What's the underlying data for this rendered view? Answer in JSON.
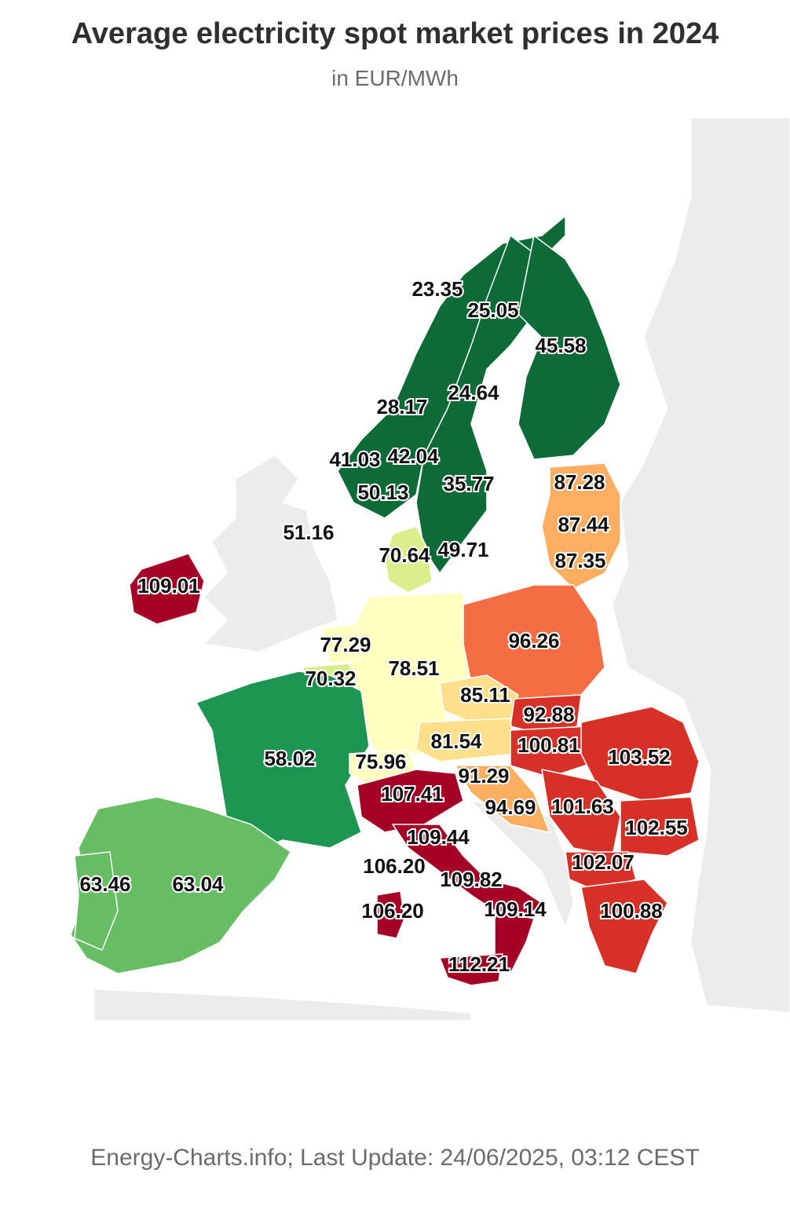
{
  "header": {
    "title": "Average electricity spot market prices in 2024",
    "subtitle": "in EUR/MWh"
  },
  "footer": {
    "source": "Energy-Charts.info; Last Update: 24/06/2025, 03:12 CEST"
  },
  "colors": {
    "dark_green": "#0d6b37",
    "green": "#1b9550",
    "light_green": "#66bd63",
    "yellow_green": "#d9ef8b",
    "pale_yellow": "#ffffbf",
    "light_orange": "#fee08b",
    "orange": "#fdae61",
    "dark_orange": "#f46d43",
    "red": "#d73027",
    "dark_red": "#a50026",
    "background_land": "#ececec"
  },
  "map_labels": [
    {
      "id": "no4",
      "value": "23.35"
    },
    {
      "id": "se1",
      "value": "25.05"
    },
    {
      "id": "fi",
      "value": "45.58"
    },
    {
      "id": "se2",
      "value": "24.64"
    },
    {
      "id": "no3",
      "value": "28.17"
    },
    {
      "id": "no5",
      "value": "41.03"
    },
    {
      "id": "no1",
      "value": "42.04"
    },
    {
      "id": "no2",
      "value": "50.13"
    },
    {
      "id": "se3",
      "value": "35.77"
    },
    {
      "id": "ee",
      "value": "87.28"
    },
    {
      "id": "lv",
      "value": "87.44"
    },
    {
      "id": "lt",
      "value": "87.35"
    },
    {
      "id": "gb",
      "value": "51.16"
    },
    {
      "id": "dk",
      "value": "70.64"
    },
    {
      "id": "se4",
      "value": "49.71"
    },
    {
      "id": "ie",
      "value": "109.01"
    },
    {
      "id": "nl",
      "value": "77.29"
    },
    {
      "id": "be",
      "value": "70.32"
    },
    {
      "id": "de",
      "value": "78.51"
    },
    {
      "id": "pl",
      "value": "96.26"
    },
    {
      "id": "cz",
      "value": "85.11"
    },
    {
      "id": "sk",
      "value": "92.88"
    },
    {
      "id": "at",
      "value": "81.54"
    },
    {
      "id": "hu",
      "value": "100.81"
    },
    {
      "id": "ro",
      "value": "103.52"
    },
    {
      "id": "fr",
      "value": "58.02"
    },
    {
      "id": "ch",
      "value": "75.96"
    },
    {
      "id": "si",
      "value": "91.29"
    },
    {
      "id": "it_north",
      "value": "107.41"
    },
    {
      "id": "hr",
      "value": "94.69"
    },
    {
      "id": "rs",
      "value": "101.63"
    },
    {
      "id": "bg",
      "value": "102.55"
    },
    {
      "id": "it_cnor",
      "value": "109.44"
    },
    {
      "id": "it_sard_north",
      "value": "106.20"
    },
    {
      "id": "it_csud",
      "value": "109.82"
    },
    {
      "id": "mk",
      "value": "102.07"
    },
    {
      "id": "pt",
      "value": "63.46"
    },
    {
      "id": "es",
      "value": "63.04"
    },
    {
      "id": "it_sard",
      "value": "106.20"
    },
    {
      "id": "it_sud",
      "value": "109.14"
    },
    {
      "id": "gr",
      "value": "100.88"
    },
    {
      "id": "it_sicily",
      "value": "112.21"
    }
  ]
}
